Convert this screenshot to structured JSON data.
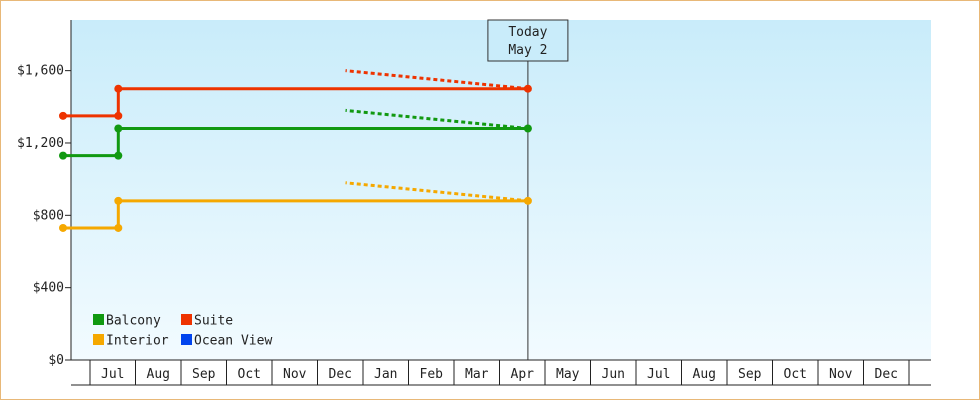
{
  "chart_data": {
    "type": "line",
    "title": "",
    "xlabel": "",
    "ylabel": "",
    "x_months": [
      "Jul",
      "Aug",
      "Sep",
      "Oct",
      "Nov",
      "Dec",
      "Jan",
      "Feb",
      "Mar",
      "Apr",
      "May",
      "Jun",
      "Jul",
      "Aug",
      "Sep",
      "Oct",
      "Nov",
      "Dec"
    ],
    "y_ticks": [
      "$0",
      "$400",
      "$800",
      "$1,200",
      "$1,600"
    ],
    "y_tick_values": [
      0,
      400,
      800,
      1200,
      1600
    ],
    "ylim": [
      0,
      1880
    ],
    "today_label": "Today",
    "today_date": "May 2",
    "grid": false,
    "legend_placement": "bottom-left",
    "series": [
      {
        "name": "Balcony",
        "color": "#119911",
        "actual": [
          {
            "x": "Jun 25",
            "y": 1130
          },
          {
            "x": "Aug 1",
            "y": 1130
          },
          {
            "x": "Aug 1",
            "y": 1280
          },
          {
            "x": "May 2",
            "y": 1280
          }
        ],
        "forecast": [
          {
            "x": "May 2",
            "y": 1280
          },
          {
            "x": "Dec 31",
            "y": 1380
          }
        ]
      },
      {
        "name": "Suite",
        "color": "#ee3300",
        "actual": [
          {
            "x": "Jun 25",
            "y": 1350
          },
          {
            "x": "Aug 1",
            "y": 1350
          },
          {
            "x": "Aug 1",
            "y": 1500
          },
          {
            "x": "May 2",
            "y": 1500
          }
        ],
        "forecast": [
          {
            "x": "May 2",
            "y": 1500
          },
          {
            "x": "Dec 31",
            "y": 1600
          }
        ]
      },
      {
        "name": "Interior",
        "color": "#f5a800",
        "actual": [
          {
            "x": "Jun 25",
            "y": 730
          },
          {
            "x": "Aug 1",
            "y": 730
          },
          {
            "x": "Aug 1",
            "y": 880
          },
          {
            "x": "May 2",
            "y": 880
          }
        ],
        "forecast": [
          {
            "x": "May 2",
            "y": 880
          },
          {
            "x": "Dec 31",
            "y": 980
          }
        ]
      },
      {
        "name": "Ocean View",
        "color": "#0044ee",
        "actual": [],
        "forecast": []
      }
    ]
  }
}
